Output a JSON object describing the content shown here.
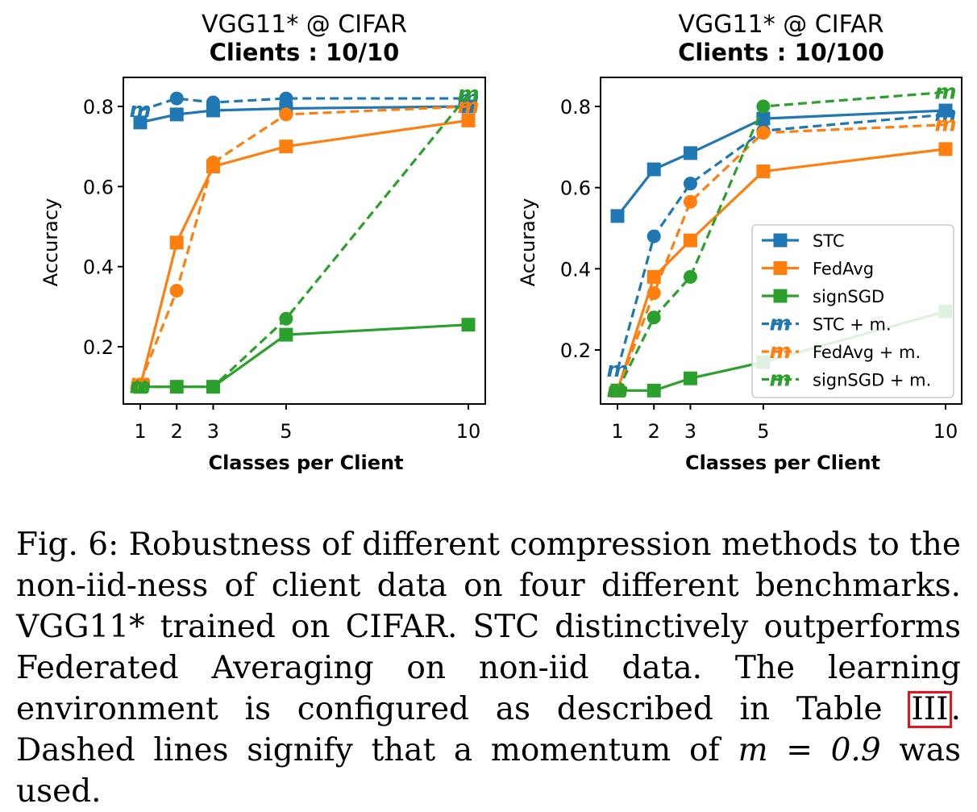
{
  "chart_data": [
    {
      "type": "line",
      "title": "VGG11* @ CIFAR",
      "subtitle": "Clients : 10/10",
      "xlabel": "Classes per Client",
      "ylabel": "Accuracy",
      "x": [
        1,
        2,
        3,
        5,
        10
      ],
      "xticks": [
        "1",
        "2",
        "3",
        "5",
        "10"
      ],
      "yticks": [
        "0.2",
        "0.4",
        "0.6",
        "0.8"
      ],
      "ylim": [
        0.06,
        0.88
      ],
      "grid": false,
      "series": [
        {
          "name": "STC",
          "style": "solid",
          "marker": "square",
          "color": "#1f77b4",
          "values": [
            0.76,
            0.78,
            0.79,
            0.795,
            0.8
          ]
        },
        {
          "name": "FedAvg",
          "style": "solid",
          "marker": "square",
          "color": "#ff7f0e",
          "values": [
            0.1,
            0.46,
            0.65,
            0.7,
            0.765
          ]
        },
        {
          "name": "signSGD",
          "style": "solid",
          "marker": "square",
          "color": "#2ca02c",
          "values": [
            0.1,
            0.1,
            0.1,
            0.23,
            0.255
          ]
        },
        {
          "name": "STC + m.",
          "style": "dashed",
          "marker": "circle",
          "color": "#1f77b4",
          "values": [
            0.79,
            0.82,
            0.81,
            0.82,
            0.82
          ]
        },
        {
          "name": "FedAvg + m.",
          "style": "dashed",
          "marker": "circle",
          "color": "#ff7f0e",
          "values": [
            0.11,
            0.34,
            0.66,
            0.78,
            0.8
          ]
        },
        {
          "name": "signSGD + m.",
          "style": "dashed",
          "marker": "circle",
          "color": "#2ca02c",
          "values": [
            0.1,
            0.1,
            0.1,
            0.27,
            0.83
          ]
        }
      ]
    },
    {
      "type": "line",
      "title": "VGG11* @ CIFAR",
      "subtitle": "Clients : 10/100",
      "xlabel": "Classes per Client",
      "ylabel": "Accuracy",
      "x": [
        1,
        2,
        3,
        5,
        10
      ],
      "xticks": [
        "1",
        "2",
        "3",
        "5",
        "10"
      ],
      "yticks": [
        "0.2",
        "0.4",
        "0.6",
        "0.8"
      ],
      "ylim": [
        0.06,
        0.88
      ],
      "grid": false,
      "legend": "lower right",
      "series": [
        {
          "name": "STC",
          "style": "solid",
          "marker": "square",
          "color": "#1f77b4",
          "values": [
            0.53,
            0.645,
            0.685,
            0.77,
            0.79
          ]
        },
        {
          "name": "FedAvg",
          "style": "solid",
          "marker": "square",
          "color": "#ff7f0e",
          "values": [
            0.1,
            0.38,
            0.47,
            0.64,
            0.695
          ]
        },
        {
          "name": "signSGD",
          "style": "solid",
          "marker": "square",
          "color": "#2ca02c",
          "values": [
            0.1,
            0.1,
            0.13,
            0.17,
            0.295
          ]
        },
        {
          "name": "STC + m.",
          "style": "dashed",
          "marker": "circle",
          "color": "#1f77b4",
          "values": [
            0.15,
            0.48,
            0.61,
            0.74,
            0.78
          ]
        },
        {
          "name": "FedAvg + m.",
          "style": "dashed",
          "marker": "circle",
          "color": "#ff7f0e",
          "values": [
            0.1,
            0.34,
            0.565,
            0.735,
            0.755
          ]
        },
        {
          "name": "signSGD + m.",
          "style": "dashed",
          "marker": "circle",
          "color": "#2ca02c",
          "values": [
            0.1,
            0.28,
            0.38,
            0.8,
            0.835
          ]
        }
      ]
    }
  ],
  "caption": {
    "part1": "Fig. 6: Robustness of different compression methods to the non-iid-ness of client data on four different benchmarks. VGG11* trained on CIFAR. STC distinctively outperforms Federated Averaging on non-iid data. The learning environment is configured as described in Table ",
    "ref": "III",
    "part2": ". Dashed lines signify that a momentum of ",
    "math": "m = 0.9",
    "part3": " was used."
  }
}
